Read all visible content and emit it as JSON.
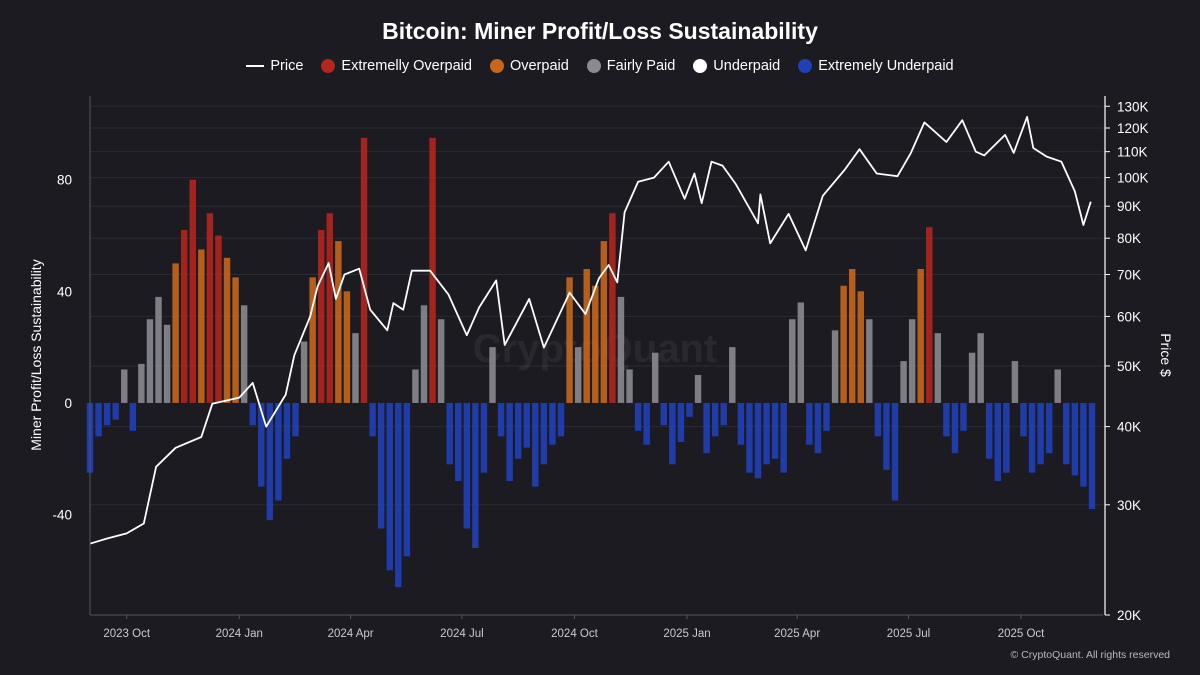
{
  "chart_data": {
    "type": "bar",
    "title": "Bitcoin: Miner Profit/Loss Sustainability",
    "ylabel": "Miner Profit/Loss Sustainability",
    "y2label": "Price $",
    "ylim": [
      -76,
      110
    ],
    "yticks": [
      80,
      40,
      0,
      -40
    ],
    "y2_scale": "log",
    "y2lim": [
      20000,
      135000
    ],
    "y2ticks": [
      "130K",
      "120K",
      "110K",
      "100K",
      "90K",
      "80K",
      "70K",
      "60K",
      "50K",
      "40K",
      "30K",
      "20K"
    ],
    "y2tick_values": [
      130000,
      120000,
      110000,
      100000,
      90000,
      80000,
      70000,
      60000,
      50000,
      40000,
      30000,
      20000
    ],
    "xlim": [
      "2023-09-01",
      "2025-12-07"
    ],
    "xticks": [
      "2023 Oct",
      "2024 Jan",
      "2024 Apr",
      "2024 Jul",
      "2024 Oct",
      "2025 Jan",
      "2025 Apr",
      "2025 Jul",
      "2025 Oct"
    ],
    "xtick_dates": [
      "2023-10-01",
      "2024-01-01",
      "2024-04-01",
      "2024-07-01",
      "2024-10-01",
      "2025-01-01",
      "2025-04-01",
      "2025-07-01",
      "2025-10-01"
    ],
    "grid": true,
    "legend_position": "top-center",
    "legend": [
      {
        "name": "Price",
        "kind": "line",
        "color": "#ffffff"
      },
      {
        "name": "Extremelly Overpaid",
        "kind": "dot",
        "color": "#b3261e"
      },
      {
        "name": "Overpaid",
        "kind": "dot",
        "color": "#c8661c"
      },
      {
        "name": "Fairly Paid",
        "kind": "dot",
        "color": "#8a8a90"
      },
      {
        "name": "Underpaid",
        "kind": "dot",
        "color": "#ffffff"
      },
      {
        "name": "Extremely Underpaid",
        "kind": "dot",
        "color": "#2140b8"
      }
    ],
    "series": [
      {
        "name": "Price",
        "kind": "line",
        "color": "#ffffff",
        "points": [
          [
            "2023-09-01",
            26000
          ],
          [
            "2023-09-15",
            26500
          ],
          [
            "2023-10-01",
            27000
          ],
          [
            "2023-10-15",
            28000
          ],
          [
            "2023-10-25",
            34500
          ],
          [
            "2023-11-10",
            37000
          ],
          [
            "2023-12-01",
            38500
          ],
          [
            "2023-12-10",
            43500
          ],
          [
            "2024-01-01",
            44500
          ],
          [
            "2024-01-12",
            47000
          ],
          [
            "2024-01-23",
            40000
          ],
          [
            "2024-02-08",
            45000
          ],
          [
            "2024-02-15",
            52000
          ],
          [
            "2024-02-28",
            60000
          ],
          [
            "2024-03-05",
            67000
          ],
          [
            "2024-03-14",
            73000
          ],
          [
            "2024-03-20",
            64000
          ],
          [
            "2024-03-27",
            70000
          ],
          [
            "2024-04-08",
            71500
          ],
          [
            "2024-04-17",
            61500
          ],
          [
            "2024-05-01",
            57000
          ],
          [
            "2024-05-06",
            63000
          ],
          [
            "2024-05-14",
            61500
          ],
          [
            "2024-05-21",
            71000
          ],
          [
            "2024-06-05",
            71000
          ],
          [
            "2024-06-20",
            65000
          ],
          [
            "2024-07-05",
            56000
          ],
          [
            "2024-07-15",
            62000
          ],
          [
            "2024-07-29",
            68500
          ],
          [
            "2024-08-05",
            54000
          ],
          [
            "2024-08-25",
            64000
          ],
          [
            "2024-09-06",
            53500
          ],
          [
            "2024-09-27",
            65500
          ],
          [
            "2024-10-10",
            60500
          ],
          [
            "2024-10-21",
            69000
          ],
          [
            "2024-10-29",
            72500
          ],
          [
            "2024-11-05",
            68000
          ],
          [
            "2024-11-11",
            88000
          ],
          [
            "2024-11-22",
            98500
          ],
          [
            "2024-12-05",
            100000
          ],
          [
            "2024-12-17",
            106000
          ],
          [
            "2024-12-30",
            92500
          ],
          [
            "2025-01-07",
            101500
          ],
          [
            "2025-01-13",
            91000
          ],
          [
            "2025-01-21",
            106000
          ],
          [
            "2025-01-30",
            104500
          ],
          [
            "2025-02-10",
            97500
          ],
          [
            "2025-02-28",
            84500
          ],
          [
            "2025-03-02",
            94000
          ],
          [
            "2025-03-10",
            78500
          ],
          [
            "2025-03-25",
            87500
          ],
          [
            "2025-04-08",
            76500
          ],
          [
            "2025-04-22",
            93500
          ],
          [
            "2025-05-10",
            103000
          ],
          [
            "2025-05-22",
            111000
          ],
          [
            "2025-06-05",
            101500
          ],
          [
            "2025-06-22",
            100500
          ],
          [
            "2025-07-03",
            109500
          ],
          [
            "2025-07-14",
            122500
          ],
          [
            "2025-08-01",
            114000
          ],
          [
            "2025-08-14",
            123500
          ],
          [
            "2025-08-25",
            110000
          ],
          [
            "2025-09-01",
            108500
          ],
          [
            "2025-09-18",
            117000
          ],
          [
            "2025-09-25",
            109500
          ],
          [
            "2025-10-06",
            125000
          ],
          [
            "2025-10-11",
            111500
          ],
          [
            "2025-10-22",
            108000
          ],
          [
            "2025-11-03",
            106000
          ],
          [
            "2025-11-14",
            95000
          ],
          [
            "2025-11-21",
            84000
          ],
          [
            "2025-11-27",
            91500
          ]
        ]
      },
      {
        "name": "Miner Profit/Loss Sustainability",
        "kind": "bar",
        "color_bands": [
          {
            "band": "Extremelly Overpaid",
            "min": 60
          },
          {
            "band": "Overpaid",
            "min": 40
          },
          {
            "band": "Fairly Paid",
            "min": 0
          },
          {
            "band": "Extremely Underpaid",
            "max": 0
          }
        ],
        "points": [
          [
            "2023-09-01",
            -25
          ],
          [
            "2023-09-08",
            -12
          ],
          [
            "2023-09-15",
            -8
          ],
          [
            "2023-09-22",
            -6
          ],
          [
            "2023-09-29",
            12
          ],
          [
            "2023-10-06",
            -10
          ],
          [
            "2023-10-13",
            14
          ],
          [
            "2023-10-20",
            30
          ],
          [
            "2023-10-27",
            38
          ],
          [
            "2023-11-03",
            28
          ],
          [
            "2023-11-10",
            50
          ],
          [
            "2023-11-17",
            62
          ],
          [
            "2023-11-24",
            80
          ],
          [
            "2023-12-01",
            55
          ],
          [
            "2023-12-08",
            68
          ],
          [
            "2023-12-15",
            60
          ],
          [
            "2023-12-22",
            52
          ],
          [
            "2023-12-29",
            45
          ],
          [
            "2024-01-05",
            35
          ],
          [
            "2024-01-12",
            -8
          ],
          [
            "2024-01-19",
            -30
          ],
          [
            "2024-01-26",
            -42
          ],
          [
            "2024-02-02",
            -35
          ],
          [
            "2024-02-09",
            -20
          ],
          [
            "2024-02-16",
            -12
          ],
          [
            "2024-02-23",
            22
          ],
          [
            "2024-03-01",
            45
          ],
          [
            "2024-03-08",
            62
          ],
          [
            "2024-03-15",
            68
          ],
          [
            "2024-03-22",
            58
          ],
          [
            "2024-03-29",
            40
          ],
          [
            "2024-04-05",
            25
          ],
          [
            "2024-04-12",
            95
          ],
          [
            "2024-04-19",
            -12
          ],
          [
            "2024-04-26",
            -45
          ],
          [
            "2024-05-03",
            -60
          ],
          [
            "2024-05-10",
            -66
          ],
          [
            "2024-05-17",
            -55
          ],
          [
            "2024-05-24",
            12
          ],
          [
            "2024-05-31",
            35
          ],
          [
            "2024-06-07",
            95
          ],
          [
            "2024-06-14",
            30
          ],
          [
            "2024-06-21",
            -22
          ],
          [
            "2024-06-28",
            -28
          ],
          [
            "2024-07-05",
            -45
          ],
          [
            "2024-07-12",
            -52
          ],
          [
            "2024-07-19",
            -25
          ],
          [
            "2024-07-26",
            20
          ],
          [
            "2024-08-02",
            -12
          ],
          [
            "2024-08-09",
            -28
          ],
          [
            "2024-08-16",
            -20
          ],
          [
            "2024-08-23",
            -16
          ],
          [
            "2024-08-30",
            -30
          ],
          [
            "2024-09-06",
            -22
          ],
          [
            "2024-09-13",
            -15
          ],
          [
            "2024-09-20",
            -12
          ],
          [
            "2024-09-27",
            45
          ],
          [
            "2024-10-04",
            20
          ],
          [
            "2024-10-11",
            48
          ],
          [
            "2024-10-18",
            42
          ],
          [
            "2024-10-25",
            58
          ],
          [
            "2024-11-01",
            68
          ],
          [
            "2024-11-08",
            38
          ],
          [
            "2024-11-15",
            12
          ],
          [
            "2024-11-22",
            -10
          ],
          [
            "2024-11-29",
            -15
          ],
          [
            "2024-12-06",
            18
          ],
          [
            "2024-12-13",
            -8
          ],
          [
            "2024-12-20",
            -22
          ],
          [
            "2024-12-27",
            -14
          ],
          [
            "2025-01-03",
            -5
          ],
          [
            "2025-01-10",
            10
          ],
          [
            "2025-01-17",
            -18
          ],
          [
            "2025-01-24",
            -12
          ],
          [
            "2025-01-31",
            -8
          ],
          [
            "2025-02-07",
            20
          ],
          [
            "2025-02-14",
            -15
          ],
          [
            "2025-02-21",
            -25
          ],
          [
            "2025-02-28",
            -27
          ],
          [
            "2025-03-07",
            -22
          ],
          [
            "2025-03-14",
            -20
          ],
          [
            "2025-03-21",
            -25
          ],
          [
            "2025-03-28",
            30
          ],
          [
            "2025-04-04",
            36
          ],
          [
            "2025-04-11",
            -15
          ],
          [
            "2025-04-18",
            -18
          ],
          [
            "2025-04-25",
            -10
          ],
          [
            "2025-05-02",
            26
          ],
          [
            "2025-05-09",
            42
          ],
          [
            "2025-05-16",
            48
          ],
          [
            "2025-05-23",
            40
          ],
          [
            "2025-05-30",
            30
          ],
          [
            "2025-06-06",
            -12
          ],
          [
            "2025-06-13",
            -24
          ],
          [
            "2025-06-20",
            -35
          ],
          [
            "2025-06-27",
            15
          ],
          [
            "2025-07-04",
            30
          ],
          [
            "2025-07-11",
            48
          ],
          [
            "2025-07-18",
            63
          ],
          [
            "2025-07-25",
            25
          ],
          [
            "2025-08-01",
            -12
          ],
          [
            "2025-08-08",
            -18
          ],
          [
            "2025-08-15",
            -10
          ],
          [
            "2025-08-22",
            18
          ],
          [
            "2025-08-29",
            25
          ],
          [
            "2025-09-05",
            -20
          ],
          [
            "2025-09-12",
            -28
          ],
          [
            "2025-09-19",
            -25
          ],
          [
            "2025-09-26",
            15
          ],
          [
            "2025-10-03",
            -12
          ],
          [
            "2025-10-10",
            -25
          ],
          [
            "2025-10-17",
            -22
          ],
          [
            "2025-10-24",
            -18
          ],
          [
            "2025-10-31",
            12
          ],
          [
            "2025-11-07",
            -22
          ],
          [
            "2025-11-14",
            -26
          ],
          [
            "2025-11-21",
            -30
          ],
          [
            "2025-11-28",
            -38
          ]
        ]
      }
    ],
    "watermark": "CryptoQuant",
    "footer": "© CryptoQuant. All rights reserved"
  }
}
